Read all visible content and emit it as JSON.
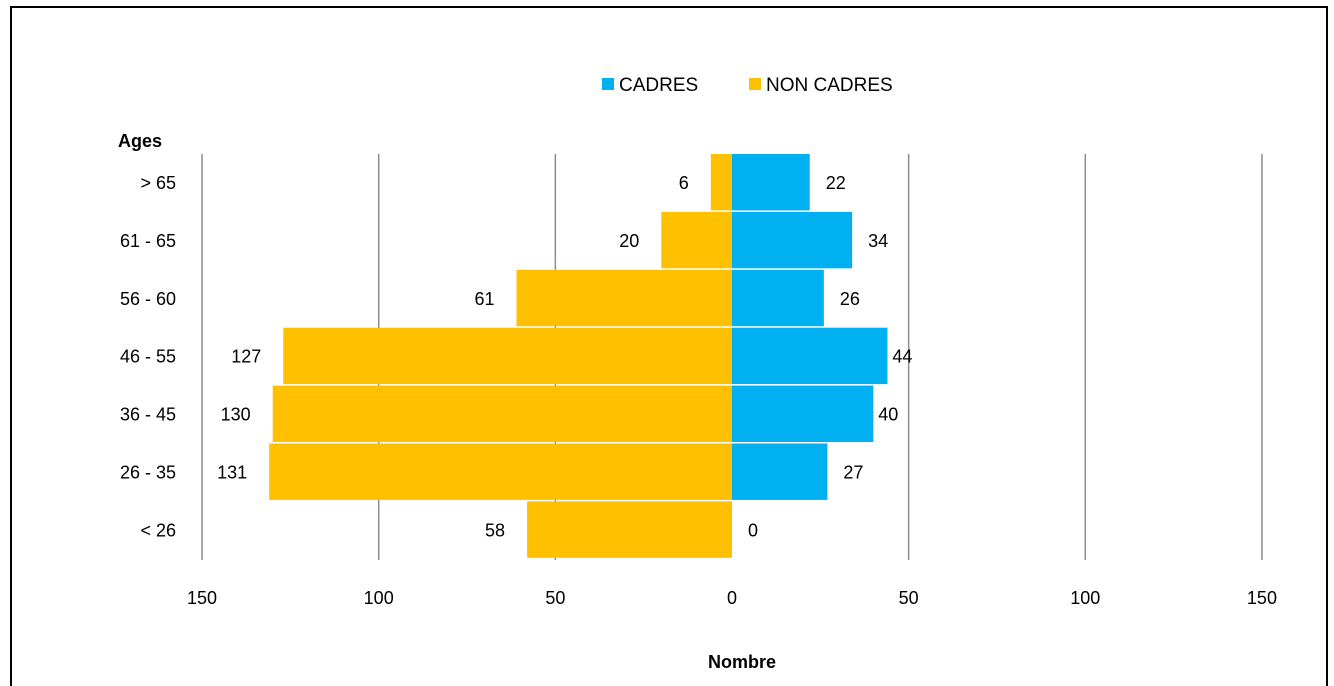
{
  "chart_data": {
    "type": "bar",
    "orientation": "horizontal",
    "subtype": "population-pyramid",
    "ylabel": "Ages",
    "xlabel": "Nombre",
    "categories": [
      "> 65",
      "61 - 65",
      "56 - 60",
      "46 - 55",
      "36 - 45",
      "26 - 35",
      "< 26"
    ],
    "series": [
      {
        "name": "CADRES",
        "side": "right",
        "color": "#00B0F0",
        "values": [
          22,
          34,
          26,
          44,
          40,
          27,
          0
        ]
      },
      {
        "name": "NON CADRES",
        "side": "left",
        "color": "#FFC000",
        "values": [
          6,
          20,
          61,
          127,
          130,
          131,
          58
        ]
      }
    ],
    "xlim": [
      -150,
      150
    ],
    "xticks": [
      -150,
      -100,
      -50,
      0,
      50,
      100,
      150
    ],
    "xtick_labels": [
      "150",
      "100",
      "50",
      "0",
      "50",
      "100",
      "150"
    ],
    "grid": true,
    "legend_position": "top"
  }
}
